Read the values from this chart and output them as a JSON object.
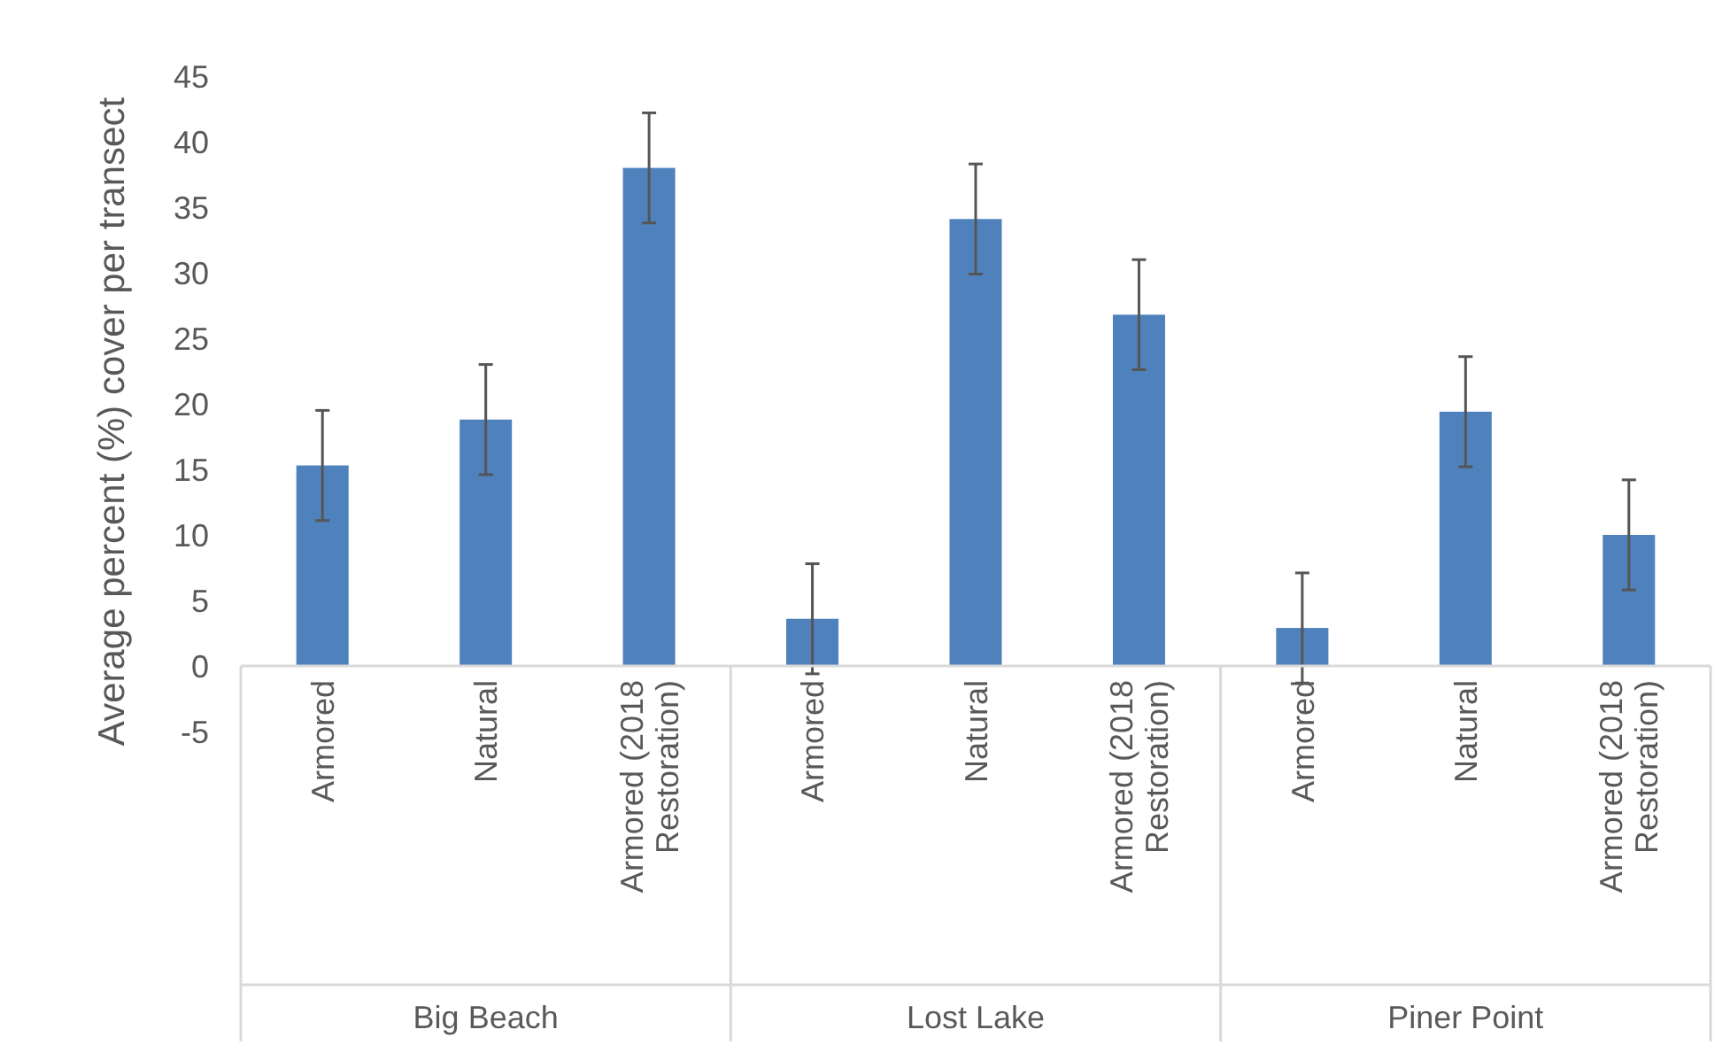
{
  "chart_data": {
    "type": "bar",
    "ylabel": "Average percent (%) cover per transect",
    "categories": [
      "Armored",
      "Natural",
      "Armored (2018 Restoration)",
      "Armored",
      "Natural",
      "Armored (2018 Restoration)",
      "Armored",
      "Natural",
      "Armored (2018 Restoration)"
    ],
    "values": [
      15.3,
      18.8,
      38.0,
      3.6,
      34.1,
      26.8,
      2.9,
      19.4,
      10.0
    ],
    "errors": [
      4.2,
      4.2,
      4.2,
      4.2,
      4.2,
      4.2,
      4.2,
      4.2,
      4.2
    ],
    "color": "#4f81bd",
    "ylim": [
      -5,
      45
    ],
    "yticks": [
      -5,
      0,
      5,
      10,
      15,
      20,
      25,
      30,
      35,
      40,
      45
    ],
    "annotations": [
      "Big Beach",
      "Lost Lake",
      "Piner Point"
    ],
    "grid": false
  }
}
